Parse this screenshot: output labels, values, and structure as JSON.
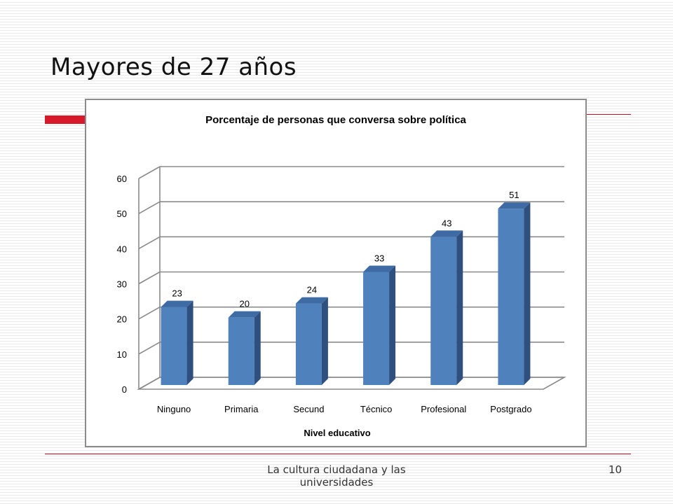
{
  "slide": {
    "title": "Mayores de 27 años",
    "footer": "La cultura ciudadana y las universidades",
    "page_number": "10"
  },
  "colors": {
    "accent_red": "#d7192c",
    "bar_front": "#4f81bd",
    "bar_side": "#2f4f7e",
    "bar_top": "#3f6ba4"
  },
  "chart_data": {
    "type": "bar",
    "title": "Porcentaje de personas que conversa sobre política",
    "xlabel": "Nivel educativo",
    "ylabel": "",
    "categories": [
      "Ninguno",
      "Primaria",
      "Secund",
      "Técnico",
      "Profesional",
      "Postgrado"
    ],
    "values": [
      23,
      20,
      24,
      33,
      43,
      51
    ],
    "ylim": [
      0,
      60
    ],
    "yticks": [
      0,
      10,
      20,
      30,
      40,
      50,
      60
    ],
    "grid": true,
    "legend": "none",
    "style": "3d-column"
  }
}
